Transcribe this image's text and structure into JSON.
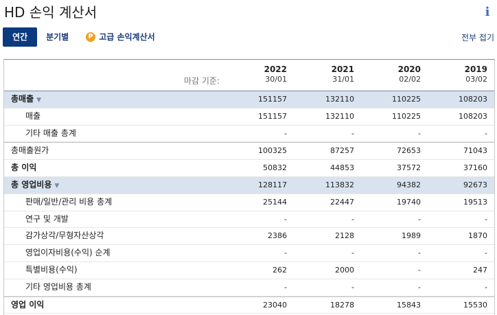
{
  "header": {
    "title": "HD 손익 계산서",
    "info_icon": "info-icon"
  },
  "tabs": [
    {
      "label": "연간",
      "active": true
    },
    {
      "label": "분기별",
      "active": false
    },
    {
      "label": "고급 손익계산서",
      "icon": "premium-p-icon"
    }
  ],
  "collapse_all": "전부 접기",
  "table": {
    "basis_label": "마감 기준:",
    "columns": [
      {
        "year": "2022",
        "date": "30/01"
      },
      {
        "year": "2021",
        "date": "31/01"
      },
      {
        "year": "2020",
        "date": "02/02"
      },
      {
        "year": "2019",
        "date": "03/02"
      }
    ],
    "rows": [
      {
        "label": "총매출",
        "values": [
          "151157",
          "132110",
          "110225",
          "108203"
        ]
      },
      {
        "label": "매출",
        "values": [
          "151157",
          "132110",
          "110225",
          "108203"
        ]
      },
      {
        "label": "기타 매출 총계",
        "values": [
          "-",
          "-",
          "-",
          "-"
        ]
      },
      {
        "label": "총매출원가",
        "values": [
          "100325",
          "87257",
          "72653",
          "71043"
        ]
      },
      {
        "label": "총 이익",
        "values": [
          "50832",
          "44853",
          "37572",
          "37160"
        ]
      },
      {
        "label": "총 영업비용",
        "values": [
          "128117",
          "113832",
          "94382",
          "92673"
        ]
      },
      {
        "label": "판매/일반/관리 비용 총계",
        "values": [
          "25144",
          "22447",
          "19740",
          "19513"
        ]
      },
      {
        "label": "연구 및 개발",
        "values": [
          "-",
          "-",
          "-",
          "-"
        ]
      },
      {
        "label": "감가상각/무형자산상각",
        "values": [
          "2386",
          "2128",
          "1989",
          "1870"
        ]
      },
      {
        "label": "영업이자비용(수익) 순계",
        "values": [
          "-",
          "-",
          "-",
          "-"
        ]
      },
      {
        "label": "특별비용(수익)",
        "values": [
          "262",
          "2000",
          "-",
          "247"
        ]
      },
      {
        "label": "기타 영업비용 총계",
        "values": [
          "-",
          "-",
          "-",
          "-"
        ]
      },
      {
        "label": "영업 이익",
        "values": [
          "23040",
          "18278",
          "15843",
          "15530"
        ]
      }
    ]
  }
}
